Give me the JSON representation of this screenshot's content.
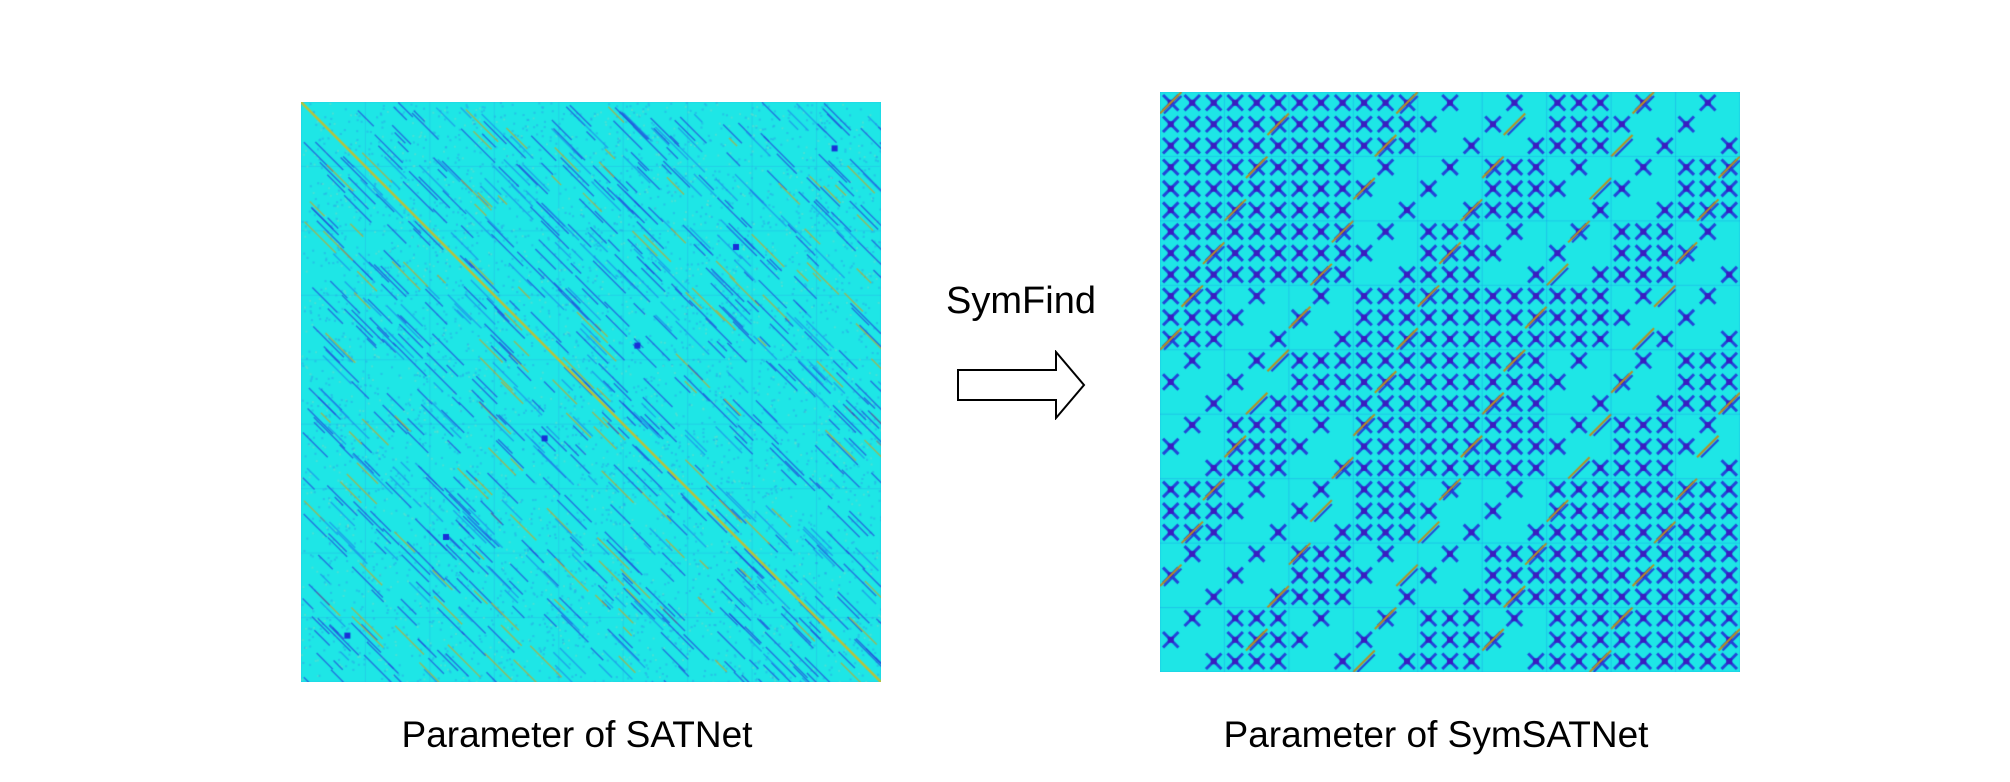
{
  "panels": {
    "left": {
      "caption": "Parameter of SATNet",
      "colors": {
        "background": "#1ee6e6",
        "minor_pattern": "#2aa8e8",
        "diagonal": "#b8c23a",
        "strong_low": "#1a2fd8",
        "strong_high": "#c8a020"
      }
    },
    "right": {
      "caption": "Parameter of SymSATNet",
      "colors": {
        "background": "#1ee6e6",
        "block_pattern": "#2346d8",
        "block_core": "#3b1cc0",
        "stripe": "#b89020"
      }
    }
  },
  "transform": {
    "label": "SymFind",
    "icon": "right-arrow-icon"
  }
}
